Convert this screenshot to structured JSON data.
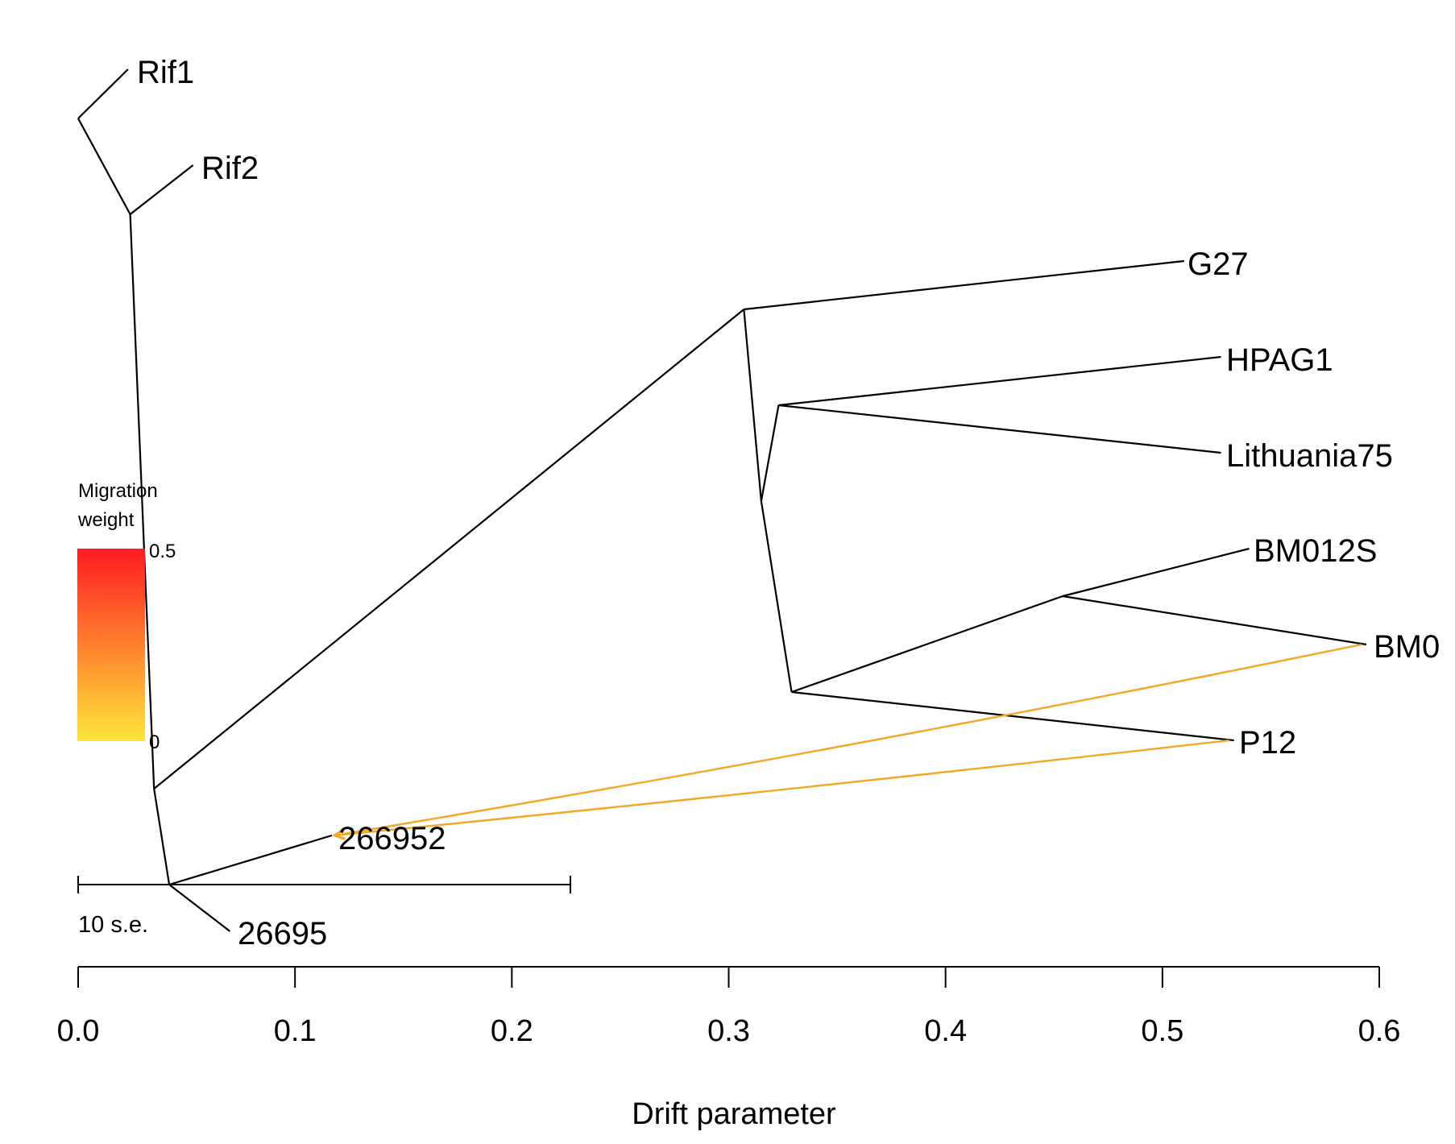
{
  "chart_data": {
    "type": "tree",
    "xlabel": "Drift parameter",
    "xlim": [
      0.0,
      0.6
    ],
    "x_ticks": [
      "0.0",
      "0.1",
      "0.2",
      "0.3",
      "0.4",
      "0.5",
      "0.6"
    ],
    "tips": [
      {
        "label": "Rif1",
        "drift": 0.023
      },
      {
        "label": "Rif2",
        "drift": 0.053
      },
      {
        "label": "G27",
        "drift": 0.51
      },
      {
        "label": "HPAG1",
        "drift": 0.527
      },
      {
        "label": "Lithuania75",
        "drift": 0.527
      },
      {
        "label": "BM012S",
        "drift": 0.54
      },
      {
        "label": "BM0",
        "drift": 0.594
      },
      {
        "label": "P12",
        "drift": 0.533
      },
      {
        "label": "266952",
        "drift": 0.117
      },
      {
        "label": "26695",
        "drift": 0.07
      }
    ],
    "internal_nodes": [
      {
        "id": "root_rif",
        "drift": 0.0
      },
      {
        "id": "rif_split",
        "drift": 0.024
      },
      {
        "id": "n_lower",
        "drift": 0.035
      },
      {
        "id": "n_266",
        "drift": 0.042
      },
      {
        "id": "n_g27",
        "drift": 0.307
      },
      {
        "id": "n_mid",
        "drift": 0.315
      },
      {
        "id": "n_hpag",
        "drift": 0.323
      },
      {
        "id": "n_bmp",
        "drift": 0.329
      },
      {
        "id": "n_bm",
        "drift": 0.454
      }
    ],
    "migration_edges": [
      {
        "from": "BM0",
        "to": "266952",
        "weight": 0.1
      },
      {
        "from": "P12",
        "to": "266952",
        "weight": 0.1
      }
    ],
    "legend": {
      "title_line1": "Migration",
      "title_line2": "weight",
      "max_label": "0.5",
      "min_label": "0",
      "color_low": "#ffe63a",
      "color_high": "#ff1a22"
    },
    "scale_bar": {
      "label": "10 s.e.",
      "length": 0.227
    },
    "migration_color": "#f5a623"
  }
}
